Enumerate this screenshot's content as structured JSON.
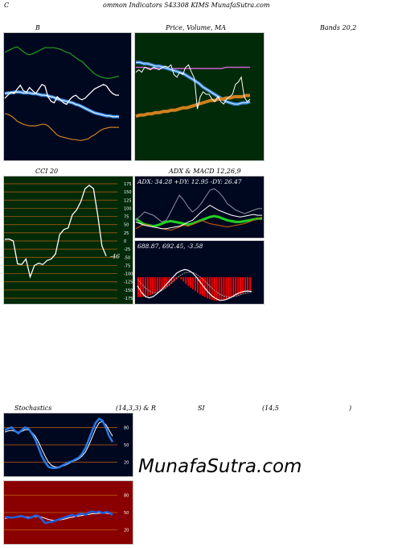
{
  "header": {
    "title_left": "C",
    "title_main": "ommon Indicators 543308 KIMS MunafaSutra.com"
  },
  "titles": {
    "bands_left": "B",
    "bands_mid": "Price,  Volume, MA",
    "bands_right": "Bands 20,2",
    "cci": "CCI 20",
    "adx_macd": "ADX  & MACD 12,26,9",
    "stoch_a": "Stochastics",
    "stoch_b": "(14,3,3) & R",
    "stoch_c": "SI",
    "stoch_d": "(14,5",
    "stoch_e": ")"
  },
  "watermark": "MunafaSutra.com",
  "colors": {
    "bg_dark": "#000820",
    "bg_green": "#002a08",
    "bg_red": "#8a0000",
    "grid_orange": "#c06010",
    "price_white": "#ffffff",
    "ma_blue": "#3a8ae0",
    "ma_orange": "#d08020",
    "band_green": "#20a020",
    "volume_green": "#20b020",
    "macd_red": "#ff0000"
  },
  "chart_data": [
    {
      "name": "bollinger",
      "type": "line",
      "series": [
        {
          "values": [
            78,
            80,
            82,
            84,
            85,
            82,
            79,
            76,
            75,
            76,
            78,
            80,
            82,
            84,
            84,
            84,
            84,
            83,
            82,
            80,
            78,
            77,
            74,
            71,
            68,
            66,
            62,
            58,
            54,
            50,
            48,
            46,
            45,
            44,
            44,
            45,
            46,
            47
          ]
        },
        {
          "values": [
            18,
            22,
            26,
            24,
            30,
            35,
            28,
            26,
            32,
            28,
            24,
            30,
            36,
            34,
            20,
            14,
            12,
            20,
            16,
            12,
            10,
            16,
            20,
            22,
            18,
            16,
            18,
            22,
            26,
            30,
            32,
            34,
            36,
            34,
            28,
            24,
            22,
            22
          ]
        },
        {
          "values": [
            -2,
            -3,
            -5,
            -8,
            -12,
            -14,
            -16,
            -17,
            -18,
            -18,
            -18,
            -17,
            -16,
            -16,
            -18,
            -22,
            -26,
            -30,
            -32,
            -33,
            -34,
            -35,
            -36,
            -36,
            -37,
            -37,
            -36,
            -35,
            -32,
            -30,
            -27,
            -24,
            -22,
            -21,
            -20,
            -20,
            -20,
            -20
          ]
        },
        {
          "values": [
            24,
            25,
            25,
            26,
            26,
            26,
            25,
            25,
            25,
            24,
            24,
            23,
            22,
            22,
            21,
            20,
            19,
            17,
            16,
            15,
            14,
            13,
            12,
            10,
            9,
            7,
            5,
            3,
            1,
            -1,
            -2,
            -3,
            -4,
            -5,
            -5,
            -6,
            -6,
            -6
          ]
        },
        {
          "values": [
            52,
            45,
            35,
            28,
            18,
            10,
            5,
            2,
            1,
            1,
            2,
            3,
            4,
            5,
            4,
            2,
            -2,
            -8,
            -15,
            -20,
            -24,
            -27,
            -30,
            -33,
            -36,
            -38,
            -40,
            -42,
            -44,
            -45,
            -46,
            -46,
            -46,
            -46,
            -46,
            -46,
            -46,
            -46
          ]
        }
      ]
    },
    {
      "name": "price_volume_ma",
      "type": "line",
      "series": [
        {
          "values": [
            30,
            32,
            30,
            34,
            33,
            32,
            34,
            33,
            32,
            34,
            35,
            34,
            36,
            28,
            26,
            30,
            28,
            34,
            36,
            30,
            25,
            0,
            10,
            14,
            12,
            12,
            8,
            6,
            10,
            6,
            4,
            8,
            10,
            12,
            20,
            22,
            26,
            10,
            6,
            8
          ]
        },
        {
          "values": [
            38,
            38,
            37,
            37,
            36,
            35,
            35,
            34,
            33,
            32,
            31,
            30,
            29,
            27,
            25,
            23,
            21,
            18,
            16,
            14,
            12,
            10,
            8,
            6,
            5,
            4,
            4,
            5,
            5,
            6
          ]
        },
        {
          "values": [
            -6,
            -5,
            -5,
            -4,
            -4,
            -3,
            -3,
            -2,
            -2,
            -1,
            -1,
            0,
            1,
            1,
            2,
            3,
            4,
            5,
            6,
            7,
            7,
            8,
            8,
            9,
            9,
            10,
            10,
            10,
            11,
            11
          ]
        },
        {
          "values": [
            34,
            34,
            34,
            33,
            33,
            33,
            33,
            33,
            33,
            33,
            33,
            33,
            33,
            33,
            33,
            33,
            33,
            33,
            33,
            34,
            34,
            34,
            34,
            34,
            34
          ]
        }
      ]
    },
    {
      "name": "cci",
      "type": "line",
      "ylim": [
        -175,
        175
      ],
      "yticks": [
        175,
        150,
        125,
        100,
        75,
        50,
        25,
        0,
        -25,
        -50,
        -75,
        -100,
        -125,
        -150,
        -175
      ],
      "last_label": "-46",
      "values": [
        5,
        6,
        0,
        -70,
        -72,
        -55,
        -110,
        -75,
        -68,
        -72,
        -60,
        -55,
        -40,
        20,
        35,
        40,
        80,
        95,
        120,
        160,
        170,
        160,
        80,
        -15,
        -46
      ]
    },
    {
      "name": "adx",
      "type": "line",
      "ylim": [
        0,
        60
      ],
      "label": "ADX: 34.28  +DY: 12.95 -DY: 26.47",
      "series": [
        {
          "values": [
            22,
            18,
            15,
            14,
            13,
            14,
            16,
            18,
            19,
            18,
            17,
            16,
            15,
            16,
            18,
            20,
            22,
            24,
            25,
            24,
            22,
            20,
            19,
            18,
            18,
            19,
            20,
            21,
            22,
            22
          ]
        },
        {
          "values": [
            10,
            13,
            15,
            14,
            12,
            11,
            10,
            9,
            8,
            10,
            12,
            14,
            13,
            15,
            17,
            20,
            18,
            16,
            15,
            14,
            13,
            12,
            13,
            14,
            15,
            16,
            18,
            20,
            22,
            24
          ]
        },
        {
          "values": [
            18,
            16,
            14,
            13,
            12,
            11,
            10,
            10,
            11,
            12,
            13,
            15,
            18,
            20,
            25,
            30,
            34,
            38,
            35,
            32,
            30,
            28,
            26,
            25,
            24,
            25,
            26,
            27,
            26,
            26
          ]
        },
        {
          "values": [
            20,
            25,
            30,
            28,
            26,
            22,
            18,
            20,
            30,
            40,
            50,
            44,
            36,
            30,
            34,
            40,
            48,
            56,
            58,
            54,
            48,
            40,
            36,
            32,
            30,
            28,
            30,
            32,
            34,
            34
          ]
        }
      ]
    },
    {
      "name": "macd",
      "type": "bar",
      "ylim": [
        -6,
        6
      ],
      "label": "688.87,  692.45,  -3.58",
      "histogram": [
        -4.6,
        -4.6,
        -4.6,
        -4.5,
        -4.4,
        -4.2,
        -4,
        -3.8,
        -3.5,
        -3.2,
        -2.9,
        -2.6,
        -2.3,
        -2,
        -1.5,
        -1,
        -0.5,
        0,
        -0.5,
        -1,
        -1.5,
        -2,
        -2.4,
        -2.8,
        -3.2,
        -3.6,
        -4,
        -4.3,
        -4.6,
        -4.9,
        -5.1,
        -5.3,
        -5.4,
        -5.5,
        -5.5,
        -5.4,
        -5.3,
        -5.1,
        -4.9,
        -4.7,
        -4.5,
        -4.3,
        -4.1,
        -3.9,
        -3.7,
        -3.5,
        -3.3,
        -3.1
      ],
      "series": [
        {
          "values": [
            -2,
            -3.5,
            -4.5,
            -4.8,
            -4.5,
            -3.8,
            -3,
            -2,
            -1,
            0,
            1,
            1.5,
            1.8,
            1.6,
            1,
            0,
            -1.2,
            -2.4,
            -3.5,
            -4.4,
            -5,
            -5.4,
            -5.3,
            -5,
            -4.6,
            -4,
            -3.6,
            -3.3,
            -3.2,
            -3.3
          ]
        },
        {
          "values": [
            -0.5,
            -1.5,
            -2.5,
            -3.2,
            -3.6,
            -3.6,
            -3.2,
            -2.6,
            -1.8,
            -1,
            -0.2,
            0.5,
            1,
            1.2,
            1.1,
            0.7,
            0,
            -0.8,
            -1.7,
            -2.6,
            -3.4,
            -4,
            -4.4,
            -4.6,
            -4.6,
            -4.4,
            -4.1,
            -3.8,
            -3.6,
            -3.5
          ]
        }
      ]
    },
    {
      "name": "stochastics",
      "type": "line",
      "ylim": [
        0,
        100
      ],
      "yticks": [
        80,
        50,
        20
      ],
      "series": [
        {
          "values": [
            75,
            78,
            80,
            74,
            70,
            75,
            80,
            78,
            70,
            60,
            45,
            30,
            20,
            12,
            10,
            10,
            11,
            14,
            17,
            20,
            22,
            25,
            28,
            35,
            45,
            60,
            75,
            88,
            95,
            92,
            80,
            65,
            55
          ]
        },
        {
          "values": [
            72,
            74,
            75,
            73,
            72,
            73,
            76,
            76,
            72,
            65,
            55,
            42,
            30,
            20,
            14,
            12,
            12,
            13,
            15,
            18,
            21,
            23,
            26,
            31,
            38,
            50,
            64,
            78,
            88,
            90,
            85,
            75,
            65
          ]
        }
      ]
    },
    {
      "name": "rsi",
      "type": "line",
      "ylim": [
        0,
        100
      ],
      "yticks": [
        80,
        50,
        20
      ],
      "series": [
        {
          "values": [
            42,
            42,
            41,
            42,
            43,
            44,
            42,
            40,
            42,
            45,
            44,
            38,
            32,
            33,
            34,
            36,
            38,
            40,
            42,
            44,
            46,
            44,
            47,
            48,
            46,
            50,
            52,
            50,
            52,
            49,
            51,
            50,
            46
          ]
        },
        {
          "values": [
            40,
            41,
            41,
            42,
            42,
            43,
            43,
            42,
            42,
            43,
            43,
            42,
            40,
            38,
            37,
            36,
            37,
            38,
            39,
            41,
            42,
            43,
            44,
            45,
            46,
            47,
            48,
            48,
            49,
            49,
            49,
            48,
            47
          ]
        }
      ]
    }
  ]
}
